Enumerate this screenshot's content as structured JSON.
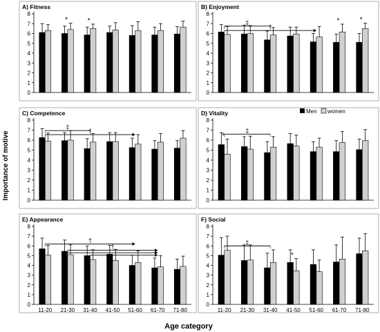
{
  "figure": {
    "y_axis_title": "Importance of motive",
    "x_axis_title": "Age category",
    "legend": [
      {
        "label": "Men",
        "color": "#000000"
      },
      {
        "label": "women",
        "color": "#d0d0d0"
      }
    ],
    "colors": {
      "men": "#000000",
      "women": "#d0d0d0",
      "axis": "#000000",
      "panel_border": "#9a9a9a"
    }
  },
  "chart_data": [
    {
      "type": "bar",
      "title": "A) Fitness",
      "categories": [
        "11-20",
        "21-30",
        "31-40",
        "41-50",
        "51-60",
        "61-70",
        "71-80"
      ],
      "series": [
        {
          "name": "Men",
          "values": [
            6.1,
            6.0,
            5.85,
            6.1,
            5.8,
            5.85,
            5.95
          ],
          "errors": [
            0.9,
            0.75,
            0.8,
            0.65,
            1.0,
            0.8,
            0.75
          ]
        },
        {
          "name": "women",
          "values": [
            6.3,
            6.4,
            6.5,
            6.35,
            6.3,
            6.3,
            6.65
          ],
          "errors": [
            0.6,
            0.65,
            0.45,
            0.75,
            0.9,
            0.7,
            0.6
          ]
        }
      ],
      "ylim": [
        0,
        8
      ],
      "yticks": [
        0,
        1,
        2,
        3,
        4,
        5,
        6,
        7,
        8
      ],
      "markers": [
        {
          "symbol": "*",
          "category": "21-30",
          "series": "women"
        },
        {
          "symbol": "*",
          "category": "31-40",
          "series": "women"
        }
      ],
      "comparison_lines": []
    },
    {
      "type": "bar",
      "title": "B) Enjoyment",
      "categories": [
        "11-20",
        "21-30",
        "31-40",
        "41-50",
        "51-60",
        "61-70",
        "71-80"
      ],
      "series": [
        {
          "name": "Men",
          "values": [
            6.15,
            5.95,
            5.35,
            5.75,
            5.15,
            5.1,
            5.1
          ],
          "errors": [
            0.75,
            0.9,
            0.9,
            0.9,
            0.85,
            0.85,
            0.9
          ]
        },
        {
          "name": "women",
          "values": [
            5.9,
            6.0,
            5.85,
            5.95,
            5.65,
            6.15,
            6.5
          ],
          "errors": [
            0.8,
            0.8,
            0.75,
            0.7,
            1.05,
            0.8,
            0.55
          ]
        }
      ],
      "ylim": [
        0,
        8
      ],
      "yticks": [
        0,
        1,
        2,
        3,
        4,
        5,
        6,
        7,
        8
      ],
      "markers": [
        {
          "symbol": "*",
          "category": "61-70",
          "series": "women"
        },
        {
          "symbol": "*",
          "category": "71-80",
          "series": "women"
        }
      ],
      "comparison_lines": [
        {
          "symbol": "‡",
          "from": "11-20",
          "to": "31-40",
          "y": 6.75,
          "arrow": false
        },
        {
          "symbol": "†",
          "from": "11-20",
          "to": "51-60",
          "y": 6.3,
          "arrow": true
        }
      ]
    },
    {
      "type": "bar",
      "title": "C) Competence",
      "categories": [
        "11-20",
        "21-30",
        "31-40",
        "41-50",
        "51-60",
        "61-70",
        "71-80"
      ],
      "series": [
        {
          "name": "Men",
          "values": [
            6.25,
            5.95,
            5.15,
            5.85,
            5.25,
            5.1,
            5.2
          ],
          "errors": [
            0.9,
            0.8,
            1.0,
            0.9,
            0.95,
            0.85,
            0.75
          ]
        },
        {
          "name": "women",
          "values": [
            5.9,
            6.0,
            5.8,
            5.85,
            5.6,
            5.8,
            6.2
          ],
          "errors": [
            0.8,
            0.95,
            0.85,
            0.9,
            0.95,
            0.85,
            0.75
          ]
        }
      ],
      "ylim": [
        0,
        8
      ],
      "yticks": [
        0,
        1,
        2,
        3,
        4,
        5,
        6,
        7,
        8
      ],
      "markers": [],
      "comparison_lines": [
        {
          "symbol": "‡",
          "from": "11-20",
          "to": "31-40",
          "y": 6.95,
          "arrow": false
        },
        {
          "symbol": "†",
          "from": "11-20",
          "to": "51-60",
          "y": 6.55,
          "arrow": true
        }
      ]
    },
    {
      "type": "bar",
      "title": "D) Vitality",
      "categories": [
        "11-20",
        "21-30",
        "31-40",
        "41-50",
        "51-60",
        "61-70",
        "71-80"
      ],
      "series": [
        {
          "name": "Men",
          "values": [
            5.55,
            5.35,
            4.75,
            5.65,
            4.85,
            4.85,
            5.05
          ],
          "errors": [
            1.2,
            1.0,
            1.1,
            1.0,
            1.0,
            1.1,
            1.05
          ]
        },
        {
          "name": "women",
          "values": [
            4.6,
            5.1,
            5.3,
            5.4,
            5.3,
            5.75,
            5.95
          ],
          "errors": [
            1.5,
            1.3,
            1.05,
            1.1,
            0.9,
            1.1,
            1.1
          ]
        }
      ],
      "ylim": [
        0,
        8
      ],
      "yticks": [
        0,
        1,
        2,
        3,
        4,
        5,
        6,
        7,
        8
      ],
      "markers": [
        {
          "symbol": "*",
          "category": "11-20",
          "series": "women"
        }
      ],
      "comparison_lines": [
        {
          "symbol": "‡",
          "from": "11-20",
          "to": "31-40",
          "y": 6.6,
          "arrow": false
        }
      ]
    },
    {
      "type": "bar",
      "title": "E) Appearance",
      "categories": [
        "11-20",
        "21-30",
        "31-40",
        "41-50",
        "51-60",
        "61-70",
        "71-80"
      ],
      "series": [
        {
          "name": "Men",
          "values": [
            5.7,
            5.45,
            5.0,
            5.15,
            4.0,
            3.75,
            3.6
          ],
          "errors": [
            1.1,
            1.15,
            1.0,
            0.9,
            1.05,
            1.0,
            1.05
          ]
        },
        {
          "name": "women",
          "values": [
            5.05,
            5.1,
            4.6,
            4.5,
            4.3,
            3.85,
            3.9
          ],
          "errors": [
            1.0,
            1.0,
            1.0,
            1.15,
            1.2,
            1.15,
            1.05
          ]
        }
      ],
      "ylim": [
        0,
        8
      ],
      "yticks": [
        0,
        1,
        2,
        3,
        4,
        5,
        6,
        7,
        8
      ],
      "markers": [],
      "comparison_lines": [
        {
          "symbol": "†",
          "from": "11-20",
          "to": "51-60",
          "y": 6.2,
          "arrow": true
        },
        {
          "symbol": "†",
          "from": "21-30",
          "to": "61-70",
          "y": 5.55,
          "arrow": true
        },
        {
          "symbol": "",
          "from": "21-30",
          "to": "61-70",
          "y": 5.3,
          "arrow": true
        },
        {
          "symbol": "",
          "from": "31-40",
          "to": "61-70",
          "y": 5.05,
          "arrow": true
        }
      ]
    },
    {
      "type": "bar",
      "title": "F) Social",
      "categories": [
        "11-20",
        "21-30",
        "31-40",
        "41-50",
        "51-60",
        "61-70",
        "71-80"
      ],
      "series": [
        {
          "name": "Men",
          "values": [
            5.05,
            4.5,
            3.75,
            4.3,
            4.1,
            4.35,
            5.2
          ],
          "errors": [
            1.8,
            1.6,
            1.5,
            1.3,
            1.5,
            1.75,
            1.6
          ]
        },
        {
          "name": "women",
          "values": [
            5.55,
            4.55,
            4.3,
            3.45,
            3.35,
            4.65,
            5.5
          ],
          "errors": [
            1.45,
            1.55,
            1.3,
            1.25,
            1.2,
            2.25,
            1.75
          ]
        }
      ],
      "ylim": [
        0,
        8
      ],
      "yticks": [
        0,
        1,
        2,
        3,
        4,
        5,
        6,
        7,
        8
      ],
      "markers": [
        {
          "symbol": "*",
          "category": "41-50",
          "series": "women"
        }
      ],
      "comparison_lines": [
        {
          "symbol": "‡",
          "from": "11-20",
          "to": "31-40",
          "y": 6.0,
          "arrow": false
        }
      ]
    }
  ]
}
